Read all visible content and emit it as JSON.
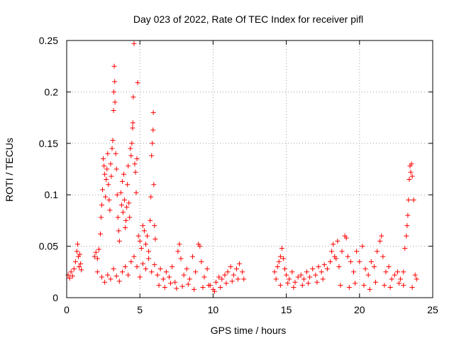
{
  "chart_data": {
    "type": "scatter",
    "title": "Day 023 of 2022, Rate Of TEC Index for receiver pifl",
    "xlabel": "GPS time / hours",
    "ylabel": "ROTI / TECUs",
    "xlim": [
      0,
      25
    ],
    "ylim": [
      0,
      0.25
    ],
    "grid": true,
    "marker": "plus",
    "color": "#ff0000",
    "xticks": [
      0,
      5,
      10,
      15,
      20,
      25
    ],
    "xtick_labels": [
      "0",
      "5",
      "10",
      "15",
      "20",
      "25"
    ],
    "yticks": [
      0,
      0.05,
      0.1,
      0.15,
      0.2,
      0.25
    ],
    "ytick_labels": [
      "0",
      "0.05",
      "0.1",
      "0.15",
      "0.2",
      "0.25"
    ],
    "series": [
      {
        "name": "ROTI",
        "points": [
          [
            0.1,
            0.022
          ],
          [
            0.2,
            0.019
          ],
          [
            0.3,
            0.025
          ],
          [
            0.4,
            0.021
          ],
          [
            0.5,
            0.028
          ],
          [
            0.6,
            0.035
          ],
          [
            0.7,
            0.045
          ],
          [
            0.75,
            0.052
          ],
          [
            0.8,
            0.04
          ],
          [
            0.85,
            0.03
          ],
          [
            0.9,
            0.042
          ],
          [
            0.95,
            0.033
          ],
          [
            1.0,
            0.027
          ],
          [
            1.9,
            0.04
          ],
          [
            2.0,
            0.044
          ],
          [
            2.1,
            0.038
          ],
          [
            2.2,
            0.047
          ],
          [
            2.3,
            0.062
          ],
          [
            2.35,
            0.078
          ],
          [
            2.4,
            0.09
          ],
          [
            2.45,
            0.105
          ],
          [
            2.5,
            0.135
          ],
          [
            2.55,
            0.128
          ],
          [
            2.6,
            0.12
          ],
          [
            2.65,
            0.098
          ],
          [
            2.7,
            0.115
          ],
          [
            2.75,
            0.125
          ],
          [
            2.8,
            0.14
          ],
          [
            2.85,
            0.11
          ],
          [
            2.9,
            0.095
          ],
          [
            2.95,
            0.085
          ],
          [
            3.0,
            0.13
          ],
          [
            3.05,
            0.118
          ],
          [
            3.1,
            0.145
          ],
          [
            3.15,
            0.153
          ],
          [
            3.2,
            0.182
          ],
          [
            3.22,
            0.2
          ],
          [
            3.25,
            0.225
          ],
          [
            3.28,
            0.21
          ],
          [
            3.3,
            0.19
          ],
          [
            3.35,
            0.14
          ],
          [
            3.4,
            0.125
          ],
          [
            3.45,
            0.1
          ],
          [
            3.5,
            0.078
          ],
          [
            3.55,
            0.065
          ],
          [
            3.6,
            0.055
          ],
          [
            3.7,
            0.102
          ],
          [
            3.75,
            0.09
          ],
          [
            3.8,
            0.113
          ],
          [
            3.85,
            0.083
          ],
          [
            3.9,
            0.12
          ],
          [
            3.95,
            0.095
          ],
          [
            4.0,
            0.068
          ],
          [
            4.05,
            0.075
          ],
          [
            4.1,
            0.088
          ],
          [
            4.15,
            0.11
          ],
          [
            4.2,
            0.128
          ],
          [
            4.25,
            0.092
          ],
          [
            4.3,
            0.078
          ],
          [
            4.35,
            0.145
          ],
          [
            4.4,
            0.138
          ],
          [
            4.45,
            0.15
          ],
          [
            4.5,
            0.165
          ],
          [
            4.52,
            0.17
          ],
          [
            4.55,
            0.195
          ],
          [
            4.6,
            0.247
          ],
          [
            4.65,
            0.13
          ],
          [
            4.7,
            0.122
          ],
          [
            4.75,
            0.102
          ],
          [
            4.8,
            0.135
          ],
          [
            4.85,
            0.209
          ],
          [
            4.9,
            0.06
          ],
          [
            5.0,
            0.055
          ],
          [
            5.1,
            0.048
          ],
          [
            5.2,
            0.07
          ],
          [
            5.3,
            0.065
          ],
          [
            5.4,
            0.052
          ],
          [
            5.5,
            0.06
          ],
          [
            5.6,
            0.045
          ],
          [
            5.7,
            0.075
          ],
          [
            5.75,
            0.098
          ],
          [
            5.8,
            0.138
          ],
          [
            5.85,
            0.15
          ],
          [
            5.9,
            0.163
          ],
          [
            5.92,
            0.18
          ],
          [
            5.95,
            0.11
          ],
          [
            6.0,
            0.07
          ],
          [
            6.05,
            0.057
          ],
          [
            2.1,
            0.025
          ],
          [
            2.4,
            0.02
          ],
          [
            2.6,
            0.015
          ],
          [
            2.8,
            0.022
          ],
          [
            3.0,
            0.018
          ],
          [
            3.2,
            0.028
          ],
          [
            3.4,
            0.021
          ],
          [
            3.6,
            0.016
          ],
          [
            3.8,
            0.025
          ],
          [
            4.0,
            0.03
          ],
          [
            4.2,
            0.022
          ],
          [
            4.4,
            0.035
          ],
          [
            4.6,
            0.04
          ],
          [
            4.8,
            0.03
          ],
          [
            5.0,
            0.02
          ],
          [
            5.2,
            0.033
          ],
          [
            5.4,
            0.028
          ],
          [
            5.6,
            0.038
          ],
          [
            5.8,
            0.025
          ],
          [
            6.0,
            0.032
          ],
          [
            6.2,
            0.022
          ],
          [
            6.4,
            0.028
          ],
          [
            6.6,
            0.018
          ],
          [
            6.8,
            0.025
          ],
          [
            7.0,
            0.02
          ],
          [
            7.2,
            0.03
          ],
          [
            7.4,
            0.015
          ],
          [
            7.6,
            0.045
          ],
          [
            7.7,
            0.052
          ],
          [
            7.8,
            0.038
          ],
          [
            8.0,
            0.022
          ],
          [
            8.2,
            0.028
          ],
          [
            8.4,
            0.018
          ],
          [
            8.6,
            0.04
          ],
          [
            8.8,
            0.025
          ],
          [
            9.0,
            0.052
          ],
          [
            9.1,
            0.05
          ],
          [
            9.2,
            0.035
          ],
          [
            9.4,
            0.02
          ],
          [
            9.6,
            0.028
          ],
          [
            9.8,
            0.012
          ],
          [
            10.0,
            0.008
          ],
          [
            10.2,
            0.015
          ],
          [
            10.4,
            0.02
          ],
          [
            10.6,
            0.018
          ],
          [
            10.8,
            0.022
          ],
          [
            11.0,
            0.025
          ],
          [
            11.2,
            0.03
          ],
          [
            11.4,
            0.022
          ],
          [
            11.6,
            0.028
          ],
          [
            11.8,
            0.033
          ],
          [
            12.0,
            0.025
          ],
          [
            12.1,
            0.018
          ],
          [
            6.3,
            0.012
          ],
          [
            6.7,
            0.01
          ],
          [
            7.1,
            0.014
          ],
          [
            7.5,
            0.009
          ],
          [
            7.9,
            0.011
          ],
          [
            8.3,
            0.013
          ],
          [
            8.7,
            0.008
          ],
          [
            9.3,
            0.01
          ],
          [
            9.7,
            0.012
          ],
          [
            10.1,
            0.006
          ],
          [
            10.5,
            0.01
          ],
          [
            10.9,
            0.014
          ],
          [
            11.3,
            0.016
          ],
          [
            11.7,
            0.018
          ],
          [
            14.2,
            0.025
          ],
          [
            14.3,
            0.018
          ],
          [
            14.4,
            0.03
          ],
          [
            14.5,
            0.035
          ],
          [
            14.6,
            0.04
          ],
          [
            14.7,
            0.048
          ],
          [
            14.8,
            0.038
          ],
          [
            14.9,
            0.028
          ],
          [
            15.0,
            0.022
          ],
          [
            15.2,
            0.018
          ],
          [
            15.4,
            0.025
          ],
          [
            15.6,
            0.015
          ],
          [
            15.8,
            0.02
          ],
          [
            16.0,
            0.022
          ],
          [
            16.2,
            0.018
          ],
          [
            16.4,
            0.025
          ],
          [
            16.6,
            0.02
          ],
          [
            16.8,
            0.028
          ],
          [
            17.0,
            0.022
          ],
          [
            17.2,
            0.03
          ],
          [
            17.4,
            0.025
          ],
          [
            17.6,
            0.032
          ],
          [
            17.8,
            0.028
          ],
          [
            18.0,
            0.035
          ],
          [
            18.1,
            0.045
          ],
          [
            18.2,
            0.052
          ],
          [
            18.3,
            0.04
          ],
          [
            18.4,
            0.038
          ],
          [
            18.5,
            0.055
          ],
          [
            18.6,
            0.03
          ],
          [
            18.8,
            0.045
          ],
          [
            19.0,
            0.06
          ],
          [
            19.1,
            0.058
          ],
          [
            19.2,
            0.04
          ],
          [
            19.4,
            0.035
          ],
          [
            19.6,
            0.025
          ],
          [
            19.8,
            0.045
          ],
          [
            20.0,
            0.035
          ],
          [
            20.2,
            0.05
          ],
          [
            20.4,
            0.028
          ],
          [
            20.6,
            0.022
          ],
          [
            20.8,
            0.035
          ],
          [
            21.0,
            0.03
          ],
          [
            21.2,
            0.045
          ],
          [
            21.4,
            0.055
          ],
          [
            21.5,
            0.06
          ],
          [
            21.6,
            0.04
          ],
          [
            21.8,
            0.025
          ],
          [
            22.0,
            0.03
          ],
          [
            22.2,
            0.018
          ],
          [
            22.4,
            0.022
          ],
          [
            22.6,
            0.025
          ],
          [
            22.8,
            0.018
          ],
          [
            23.0,
            0.025
          ],
          [
            23.1,
            0.048
          ],
          [
            23.2,
            0.06
          ],
          [
            23.25,
            0.07
          ],
          [
            23.3,
            0.08
          ],
          [
            23.35,
            0.095
          ],
          [
            23.4,
            0.115
          ],
          [
            23.45,
            0.128
          ],
          [
            23.5,
            0.122
          ],
          [
            23.55,
            0.13
          ],
          [
            23.6,
            0.118
          ],
          [
            23.7,
            0.095
          ],
          [
            23.8,
            0.022
          ],
          [
            23.9,
            0.018
          ],
          [
            14.6,
            0.012
          ],
          [
            15.1,
            0.014
          ],
          [
            15.5,
            0.01
          ],
          [
            16.1,
            0.012
          ],
          [
            16.5,
            0.014
          ],
          [
            17.1,
            0.015
          ],
          [
            17.5,
            0.018
          ],
          [
            18.7,
            0.012
          ],
          [
            19.3,
            0.01
          ],
          [
            19.7,
            0.014
          ],
          [
            20.3,
            0.012
          ],
          [
            20.7,
            0.008
          ],
          [
            21.1,
            0.015
          ],
          [
            21.7,
            0.012
          ],
          [
            22.1,
            0.01
          ],
          [
            22.7,
            0.014
          ],
          [
            23.0,
            0.012
          ],
          [
            23.6,
            0.01
          ]
        ]
      }
    ]
  }
}
